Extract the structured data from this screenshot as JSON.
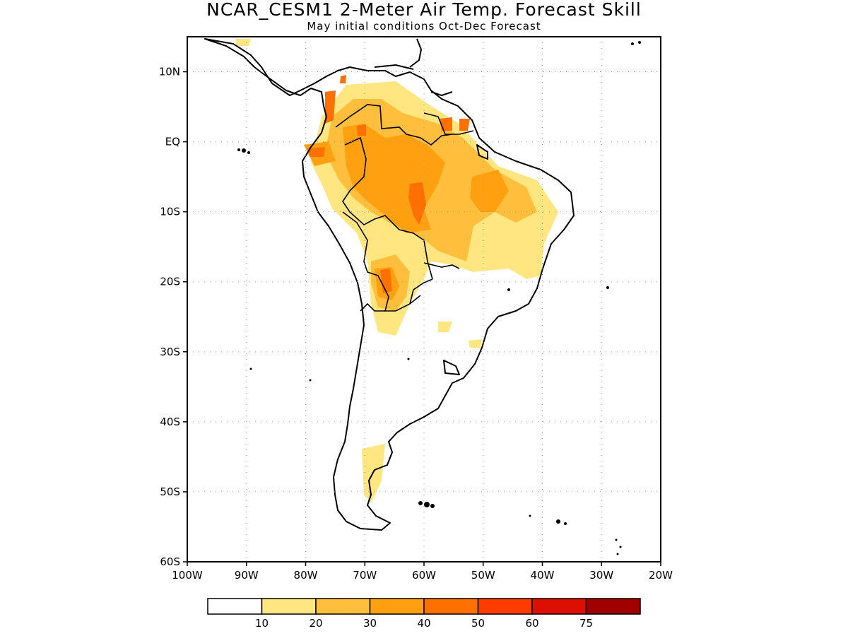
{
  "header": {
    "title": "NCAR_CESM1 2-Meter Air Temp. Forecast Skill",
    "subtitle": "May initial conditions  Oct-Dec Forecast"
  },
  "map": {
    "lon_range": [
      -100,
      -20
    ],
    "lat_range": [
      -60,
      15
    ],
    "y_ticks": [
      "10N",
      "EQ",
      "10S",
      "20S",
      "30S",
      "40S",
      "50S",
      "60S"
    ],
    "x_ticks": [
      "100W",
      "90W",
      "80W",
      "70W",
      "60W",
      "50W",
      "40W",
      "30W",
      "20W"
    ],
    "grid": "dotted"
  },
  "legend": {
    "levels": [
      "10",
      "20",
      "30",
      "40",
      "50",
      "60",
      "75"
    ],
    "colors": [
      "#ffffff",
      "#ffe680",
      "#ffbf3c",
      "#ffa010",
      "#ff7000",
      "#ff3c00",
      "#dc0f00",
      "#a00000"
    ]
  }
}
